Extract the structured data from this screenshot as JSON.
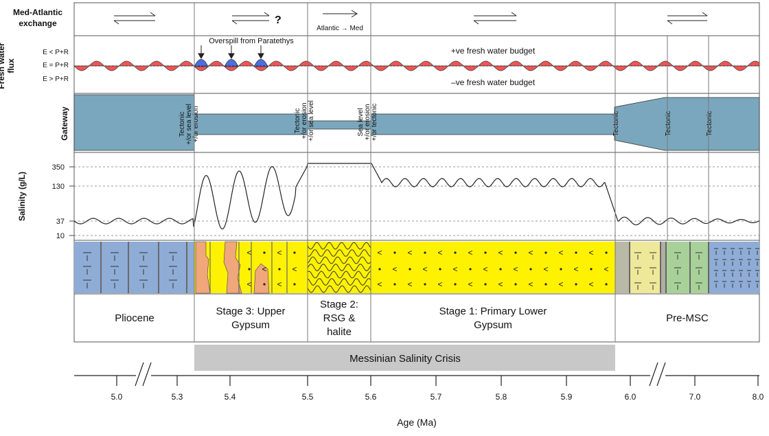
{
  "row_labels": {
    "exchange_1": "Med-Atlantic",
    "exchange_2": "exchange",
    "flux_1": "Fresh water",
    "flux_2": "flux",
    "gateway": "Gateway",
    "salinity": "Salinity (g/L)"
  },
  "flux_levels": [
    "E < P+R",
    "E = P+R",
    "E > P+R"
  ],
  "flux_texts": {
    "overspill": "Overspill from Paratethys",
    "positive": "+ve fresh water budget",
    "negative": "–ve fresh water budget"
  },
  "exchange": {
    "question_mark": "?",
    "atlantic_med": "Atlantic → Med"
  },
  "gateway_labels": {
    "stage3": [
      "Tectonic",
      "+/or sea level",
      "+/or erosion"
    ],
    "stage2": [
      "Tectonic",
      "+/or erosion",
      "+/or sea level"
    ],
    "stage1": [
      "Sea level",
      "+/or erosion",
      "+/or tectonic"
    ],
    "pre1": "Tectonic",
    "pre2": "Tectonic",
    "pre3": "Tectonic"
  },
  "salinity_ticks": [
    "350",
    "130",
    "37",
    "10"
  ],
  "stages": {
    "pliocene": [
      "Pliocene"
    ],
    "stage3": [
      "Stage 3: Upper",
      "Gypsum"
    ],
    "stage2": [
      "Stage 2:",
      "RSG &",
      "halite"
    ],
    "stage1": [
      "Stage 1: Primary Lower",
      "Gypsum"
    ],
    "premsc": [
      "Pre-MSC"
    ]
  },
  "crisis_label": "Messinian Salinity Crisis",
  "axis": {
    "ticks": [
      "5.0",
      "5.3",
      "5.4",
      "5.5",
      "5.6",
      "5.7",
      "5.8",
      "5.9",
      "6.0",
      "7.0",
      "8.0"
    ],
    "title": "Age (Ma)"
  },
  "colors": {
    "blue_lith": "#8eacd6",
    "yellow_gypsum": "#fff200",
    "salmon": "#f0a77a",
    "gateway": "#7aa7bd",
    "flux_red": "#f05454",
    "flux_blue": "#4a6fe0",
    "crisis_band": "#c8c8c8",
    "green_lith": "#a8d19a",
    "pale_yellow": "#eee89a"
  }
}
